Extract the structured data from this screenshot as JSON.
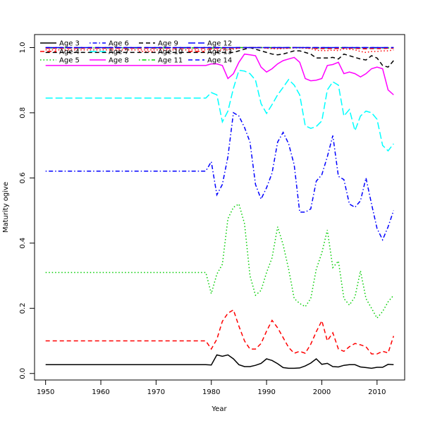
{
  "chart_data": {
    "type": "line",
    "title": "",
    "xlabel": "Year",
    "ylabel": "Maturity ogive",
    "xlim": [
      1948,
      2015
    ],
    "ylim": [
      -0.02,
      1.04
    ],
    "xticks": [
      1950,
      1960,
      1970,
      1980,
      1990,
      2000,
      2010
    ],
    "yticks": [
      0.0,
      0.2,
      0.4,
      0.6,
      0.8,
      1.0
    ],
    "xtick_labels": [
      "1950",
      "1960",
      "1970",
      "1980",
      "1990",
      "2000",
      "2010"
    ],
    "ytick_labels": [
      "0.0",
      "0.2",
      "0.4",
      "0.6",
      "0.8",
      "1.0"
    ],
    "grid": false,
    "legend_position": "top",
    "const_start": 1950,
    "const_end": 1979,
    "var_start": 1980,
    "series": [
      {
        "name": "Age 3",
        "color": "#000000",
        "dash": "solid",
        "const": 0.027,
        "values": [
          0.026,
          0.057,
          0.053,
          0.057,
          0.045,
          0.027,
          0.021,
          0.021,
          0.025,
          0.031,
          0.045,
          0.04,
          0.03,
          0.018,
          0.016,
          0.016,
          0.017,
          0.023,
          0.032,
          0.045,
          0.028,
          0.031,
          0.021,
          0.02,
          0.025,
          0.027,
          0.027,
          0.02,
          0.018,
          0.016,
          0.019,
          0.019,
          0.028,
          0.027
        ]
      },
      {
        "name": "Age 4",
        "color": "#ff0000",
        "dash": "dashed",
        "const": 0.1,
        "values": [
          0.075,
          0.105,
          0.16,
          0.185,
          0.195,
          0.145,
          0.1,
          0.075,
          0.075,
          0.092,
          0.13,
          0.163,
          0.14,
          0.11,
          0.08,
          0.062,
          0.068,
          0.062,
          0.09,
          0.128,
          0.162,
          0.1,
          0.125,
          0.075,
          0.068,
          0.082,
          0.092,
          0.088,
          0.082,
          0.06,
          0.06,
          0.068,
          0.063,
          0.115
        ]
      },
      {
        "name": "Age 5",
        "color": "#00cd00",
        "dash": "dotted",
        "const": 0.31,
        "values": [
          0.245,
          0.305,
          0.335,
          0.475,
          0.51,
          0.52,
          0.46,
          0.3,
          0.24,
          0.255,
          0.31,
          0.355,
          0.45,
          0.395,
          0.32,
          0.23,
          0.215,
          0.205,
          0.23,
          0.32,
          0.37,
          0.44,
          0.325,
          0.345,
          0.23,
          0.21,
          0.235,
          0.315,
          0.23,
          0.2,
          0.17,
          0.19,
          0.22,
          0.24
        ]
      },
      {
        "name": "Age 6",
        "color": "#0000ff",
        "dash": "dashdot",
        "const": 0.621,
        "values": [
          0.65,
          0.548,
          0.58,
          0.665,
          0.8,
          0.79,
          0.755,
          0.71,
          0.58,
          0.535,
          0.57,
          0.615,
          0.71,
          0.74,
          0.705,
          0.64,
          0.495,
          0.495,
          0.505,
          0.59,
          0.61,
          0.665,
          0.73,
          0.605,
          0.595,
          0.52,
          0.51,
          0.53,
          0.6,
          0.52,
          0.445,
          0.41,
          0.45,
          0.5
        ]
      },
      {
        "name": "Age 7",
        "color": "#00ffff",
        "dash": "longdash",
        "const": 0.845,
        "values": [
          0.862,
          0.855,
          0.772,
          0.805,
          0.875,
          0.93,
          0.928,
          0.92,
          0.9,
          0.828,
          0.798,
          0.825,
          0.855,
          0.878,
          0.902,
          0.885,
          0.855,
          0.76,
          0.752,
          0.758,
          0.775,
          0.87,
          0.895,
          0.885,
          0.79,
          0.81,
          0.745,
          0.79,
          0.805,
          0.8,
          0.78,
          0.7,
          0.683,
          0.705
        ]
      },
      {
        "name": "Age 8",
        "color": "#ff00ff",
        "dash": "solid",
        "const": 0.945,
        "values": [
          0.95,
          0.95,
          0.945,
          0.905,
          0.92,
          0.955,
          0.98,
          0.978,
          0.975,
          0.94,
          0.925,
          0.935,
          0.95,
          0.96,
          0.965,
          0.97,
          0.955,
          0.905,
          0.898,
          0.9,
          0.905,
          0.945,
          0.948,
          0.955,
          0.92,
          0.925,
          0.92,
          0.91,
          0.92,
          0.935,
          0.94,
          0.935,
          0.87,
          0.855
        ]
      },
      {
        "name": "Age 9",
        "color": "#000000",
        "dash": "dashed",
        "const": 0.985,
        "values": [
          0.985,
          0.985,
          0.985,
          0.985,
          0.985,
          0.99,
          0.995,
          1.0,
          0.995,
          0.99,
          0.985,
          0.98,
          0.978,
          0.98,
          0.985,
          0.99,
          0.99,
          0.985,
          0.98,
          0.968,
          0.968,
          0.968,
          0.97,
          0.965,
          0.98,
          0.975,
          0.97,
          0.965,
          0.962,
          0.975,
          0.968,
          0.945,
          0.94,
          0.96
        ]
      },
      {
        "name": "Age 10",
        "color": "#ff0000",
        "dash": "dotted",
        "const": 0.993,
        "values": [
          0.995,
          0.993,
          0.993,
          0.993,
          0.995,
          0.998,
          1.0,
          1.0,
          1.0,
          1.0,
          0.998,
          0.997,
          0.996,
          0.997,
          0.998,
          0.999,
          0.999,
          0.998,
          0.997,
          0.992,
          0.991,
          0.991,
          0.992,
          0.991,
          0.996,
          0.995,
          0.993,
          0.988,
          0.985,
          0.988,
          0.988,
          0.99,
          0.99,
          0.993
        ]
      },
      {
        "name": "Age 11",
        "color": "#00cd00",
        "dash": "dashdot",
        "const": 0.999,
        "values": [
          0.999,
          0.999,
          0.999,
          0.999,
          0.999,
          1.0,
          1.0,
          1.0,
          1.0,
          1.0,
          1.0,
          1.0,
          1.0,
          1.0,
          1.0,
          1.0,
          1.0,
          1.0,
          0.999,
          0.999,
          0.999,
          0.999,
          0.999,
          0.999,
          1.0,
          1.0,
          0.999,
          0.999,
          0.999,
          0.999,
          0.999,
          0.999,
          0.999,
          0.999
        ]
      },
      {
        "name": "Age 12",
        "color": "#0000ff",
        "dash": "longdash",
        "const": 1.0,
        "values": [
          1.0,
          1.0,
          1.0,
          1.0,
          1.0,
          1.0,
          1.0,
          1.0,
          1.0,
          1.0,
          1.0,
          1.0,
          1.0,
          1.0,
          1.0,
          1.0,
          1.0,
          1.0,
          1.0,
          1.0,
          1.0,
          1.0,
          1.0,
          1.0,
          1.0,
          1.0,
          1.0,
          1.0,
          1.0,
          1.0,
          1.0,
          1.0,
          1.0,
          1.0
        ]
      },
      {
        "name": "Age 13",
        "color": "#ff0000",
        "dash": "dashed",
        "const": 0.998,
        "values": [
          0.998,
          0.998,
          0.998,
          0.998,
          0.998,
          0.999,
          1.0,
          1.0,
          1.0,
          1.0,
          0.999,
          0.999,
          0.999,
          0.999,
          0.999,
          1.0,
          1.0,
          0.999,
          0.999,
          0.997,
          0.997,
          0.997,
          0.997,
          0.997,
          0.999,
          0.998,
          0.998,
          0.997,
          0.996,
          0.997,
          0.997,
          0.997,
          0.998,
          0.998
        ]
      },
      {
        "name": "Age 14",
        "color": "#0000ff",
        "dash": "dashed",
        "const": 1.0,
        "values": [
          1.0,
          1.0,
          1.0,
          1.0,
          1.0,
          1.0,
          1.0,
          1.0,
          1.0,
          1.0,
          1.0,
          1.0,
          1.0,
          1.0,
          1.0,
          1.0,
          1.0,
          1.0,
          1.0,
          1.0,
          1.0,
          1.0,
          1.0,
          1.0,
          1.0,
          1.0,
          1.0,
          1.0,
          1.0,
          1.0,
          1.0,
          1.0,
          1.0,
          1.0
        ]
      }
    ]
  }
}
